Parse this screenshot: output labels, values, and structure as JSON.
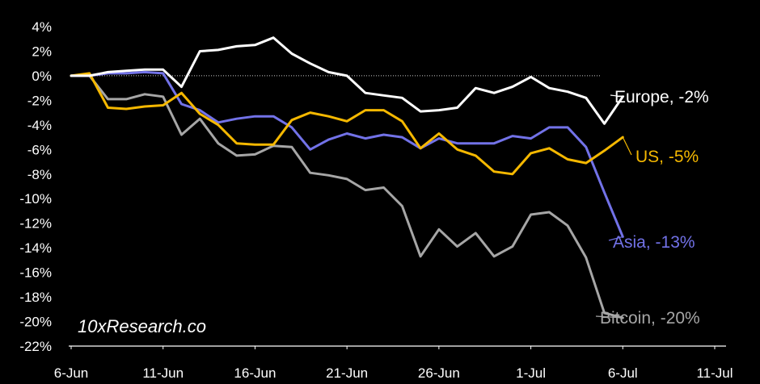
{
  "watermark": "10xResearch.co",
  "chart_data": {
    "type": "line",
    "x_ticks": [
      "6-Jun",
      "11-Jun",
      "16-Jun",
      "21-Jun",
      "26-Jun",
      "1-Jul",
      "6-Jul",
      "11-Jul"
    ],
    "y_ticks": [
      "4%",
      "2%",
      "0%",
      "-2%",
      "-4%",
      "-6%",
      "-8%",
      "-10%",
      "-12%",
      "-14%",
      "-16%",
      "-18%",
      "-20%",
      "-22%"
    ],
    "ylim": [
      -22,
      4
    ],
    "xlim": [
      "2024-06-06",
      "2024-07-11"
    ],
    "zero_line": "dotted",
    "series": [
      {
        "name": "Europe, -2%",
        "color": "#ffffff",
        "x": [
          "2024-06-06",
          "2024-06-07",
          "2024-06-08",
          "2024-06-09",
          "2024-06-10",
          "2024-06-11",
          "2024-06-12",
          "2024-06-13",
          "2024-06-14",
          "2024-06-15",
          "2024-06-16",
          "2024-06-17",
          "2024-06-18",
          "2024-06-19",
          "2024-06-20",
          "2024-06-21",
          "2024-06-22",
          "2024-06-23",
          "2024-06-24",
          "2024-06-25",
          "2024-06-26",
          "2024-06-27",
          "2024-06-28",
          "2024-06-29",
          "2024-06-30",
          "2024-07-01",
          "2024-07-02",
          "2024-07-03",
          "2024-07-04",
          "2024-07-05",
          "2024-07-06"
        ],
        "values": [
          0,
          0,
          0.3,
          0.4,
          0.5,
          0.5,
          -0.9,
          2.0,
          2.1,
          2.4,
          2.5,
          3.1,
          1.8,
          1.0,
          0.3,
          0,
          -1.4,
          -1.6,
          -1.8,
          -2.9,
          -2.8,
          -2.6,
          -1.0,
          -1.4,
          -0.9,
          -0.1,
          -1.0,
          -1.3,
          -1.8,
          -3.9,
          -1.7
        ]
      },
      {
        "name": "US, -5%",
        "color": "#f5b800",
        "x": [
          "2024-06-06",
          "2024-06-07",
          "2024-06-08",
          "2024-06-09",
          "2024-06-10",
          "2024-06-11",
          "2024-06-12",
          "2024-06-13",
          "2024-06-14",
          "2024-06-15",
          "2024-06-16",
          "2024-06-17",
          "2024-06-18",
          "2024-06-19",
          "2024-06-20",
          "2024-06-21",
          "2024-06-22",
          "2024-06-23",
          "2024-06-24",
          "2024-06-25",
          "2024-06-26",
          "2024-06-27",
          "2024-06-28",
          "2024-06-29",
          "2024-06-30",
          "2024-07-01",
          "2024-07-02",
          "2024-07-03",
          "2024-07-04",
          "2024-07-05",
          "2024-07-06"
        ],
        "values": [
          0,
          0.2,
          -2.6,
          -2.7,
          -2.5,
          -2.4,
          -1.4,
          -3.1,
          -4.0,
          -5.5,
          -5.6,
          -5.6,
          -3.6,
          -3.0,
          -3.3,
          -3.7,
          -2.8,
          -2.8,
          -3.7,
          -5.9,
          -4.7,
          -6.0,
          -6.5,
          -7.8,
          -8.0,
          -6.3,
          -5.9,
          -6.8,
          -7.1,
          -6.1,
          -5.0
        ]
      },
      {
        "name": "Asia, -13%",
        "color": "#7272e8",
        "x": [
          "2024-06-06",
          "2024-06-07",
          "2024-06-08",
          "2024-06-09",
          "2024-06-10",
          "2024-06-11",
          "2024-06-12",
          "2024-06-13",
          "2024-06-14",
          "2024-06-15",
          "2024-06-16",
          "2024-06-17",
          "2024-06-18",
          "2024-06-19",
          "2024-06-20",
          "2024-06-21",
          "2024-06-22",
          "2024-06-23",
          "2024-06-24",
          "2024-06-25",
          "2024-06-26",
          "2024-06-27",
          "2024-06-28",
          "2024-06-29",
          "2024-06-30",
          "2024-07-01",
          "2024-07-02",
          "2024-07-03",
          "2024-07-04",
          "2024-07-05",
          "2024-07-06"
        ],
        "values": [
          0,
          0,
          0.2,
          0.2,
          0.3,
          0.2,
          -2.3,
          -2.8,
          -3.8,
          -3.5,
          -3.3,
          -3.3,
          -4.2,
          -6.0,
          -5.2,
          -4.7,
          -5.1,
          -4.8,
          -5.0,
          -5.9,
          -5.1,
          -5.5,
          -5.5,
          -5.5,
          -4.9,
          -5.1,
          -4.2,
          -4.2,
          -5.8,
          -9.5,
          -13.1
        ]
      },
      {
        "name": "Bitcoin, -20%",
        "color": "#a6a6a6",
        "x": [
          "2024-06-06",
          "2024-06-07",
          "2024-06-08",
          "2024-06-09",
          "2024-06-10",
          "2024-06-11",
          "2024-06-12",
          "2024-06-13",
          "2024-06-14",
          "2024-06-15",
          "2024-06-16",
          "2024-06-17",
          "2024-06-18",
          "2024-06-19",
          "2024-06-20",
          "2024-06-21",
          "2024-06-22",
          "2024-06-23",
          "2024-06-24",
          "2024-06-25",
          "2024-06-26",
          "2024-06-27",
          "2024-06-28",
          "2024-06-29",
          "2024-06-30",
          "2024-07-01",
          "2024-07-02",
          "2024-07-03",
          "2024-07-04",
          "2024-07-05",
          "2024-07-06"
        ],
        "values": [
          0,
          0,
          -1.9,
          -1.9,
          -1.5,
          -1.7,
          -4.8,
          -3.5,
          -5.5,
          -6.5,
          -6.4,
          -5.7,
          -5.8,
          -7.9,
          -8.1,
          -8.4,
          -9.3,
          -9.1,
          -10.6,
          -14.7,
          -12.5,
          -13.9,
          -12.8,
          -14.7,
          -13.9,
          -11.3,
          -11.1,
          -12.2,
          -14.8,
          -19.3,
          -19.7
        ]
      }
    ]
  }
}
